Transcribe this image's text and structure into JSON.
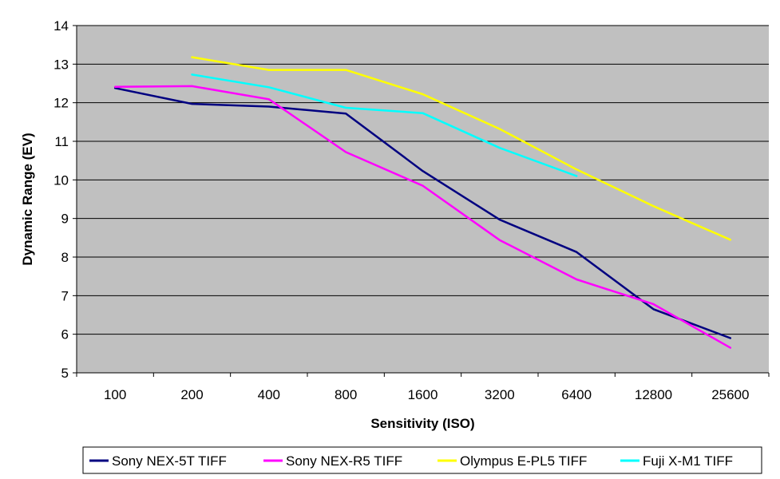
{
  "chart_data": {
    "type": "line",
    "title": "",
    "xlabel": "Sensitivity (ISO)",
    "ylabel": "Dynamic Range (EV)",
    "categories": [
      "100",
      "200",
      "400",
      "800",
      "1600",
      "3200",
      "6400",
      "12800",
      "25600"
    ],
    "ylim": [
      5,
      14
    ],
    "yticks": [
      "5",
      "6",
      "7",
      "8",
      "9",
      "10",
      "11",
      "12",
      "13",
      "14"
    ],
    "grid": true,
    "legend_position": "bottom",
    "plot_background": "#c0c0c0",
    "series": [
      {
        "name": "Sony NEX-5T TIFF",
        "color": "#000080",
        "values": [
          12.38,
          11.97,
          11.9,
          11.72,
          10.23,
          8.97,
          8.13,
          6.65,
          5.9
        ]
      },
      {
        "name": "Sony NEX-R5 TIFF",
        "color": "#ff00ff",
        "values": [
          12.41,
          12.43,
          12.09,
          10.72,
          9.85,
          8.44,
          7.42,
          6.78,
          5.65
        ]
      },
      {
        "name": "Olympus E-PL5 TIFF",
        "color": "#ffff00",
        "values": [
          null,
          13.18,
          12.85,
          12.85,
          12.22,
          11.32,
          10.27,
          9.32,
          8.45
        ]
      },
      {
        "name": "Fuji X-M1 TIFF",
        "color": "#00ffff",
        "values": [
          null,
          12.73,
          12.4,
          11.87,
          11.73,
          10.83,
          10.1,
          null,
          null
        ]
      }
    ]
  }
}
